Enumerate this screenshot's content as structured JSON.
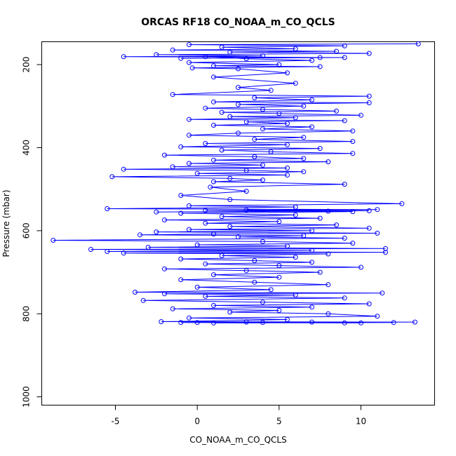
{
  "chart_data": {
    "type": "line",
    "title": "ORCAS RF18 CO_NOAA_m_CO_QCLS",
    "xlabel": "CO_NOAA_m_CO_QCLS",
    "ylabel": "Pressure (mbar)",
    "xlim": [
      -9.5,
      14.5
    ],
    "ylim": [
      1020,
      145
    ],
    "y_reversed": true,
    "x_ticks": [
      -5,
      0,
      5,
      10
    ],
    "x_tick_labels": [
      "-5",
      "0",
      "5",
      "10"
    ],
    "y_ticks": [
      200,
      400,
      600,
      800,
      1000
    ],
    "y_tick_labels": [
      "200",
      "400",
      "600",
      "800",
      "1000"
    ],
    "grid": false,
    "color": "#0000ff",
    "marker": "open-circle",
    "series": [
      {
        "values": [
          {
            "x": 13.5,
            "y": 150
          },
          {
            "x": -0.5,
            "y": 152
          },
          {
            "x": 9.0,
            "y": 155
          },
          {
            "x": 1.5,
            "y": 158
          },
          {
            "x": 6.0,
            "y": 162
          },
          {
            "x": -1.5,
            "y": 165
          },
          {
            "x": 8.5,
            "y": 168
          },
          {
            "x": 2.0,
            "y": 170
          },
          {
            "x": 10.5,
            "y": 173
          },
          {
            "x": -2.5,
            "y": 176
          },
          {
            "x": 4.0,
            "y": 179
          },
          {
            "x": -4.5,
            "y": 181
          },
          {
            "x": 9.0,
            "y": 183
          },
          {
            "x": -1.0,
            "y": 185
          },
          {
            "x": 7.5,
            "y": 183
          },
          {
            "x": 0.5,
            "y": 181
          },
          {
            "x": 3.0,
            "y": 186
          },
          {
            "x": 7.0,
            "y": 190
          },
          {
            "x": -0.5,
            "y": 195
          },
          {
            "x": 5.0,
            "y": 200
          },
          {
            "x": 1.0,
            "y": 203
          },
          {
            "x": 7.5,
            "y": 205
          },
          {
            "x": -0.3,
            "y": 208
          },
          {
            "x": 2.5,
            "y": 210
          },
          {
            "x": 5.5,
            "y": 220
          },
          {
            "x": 1.0,
            "y": 230
          },
          {
            "x": 6.0,
            "y": 245
          },
          {
            "x": 2.5,
            "y": 255
          },
          {
            "x": 4.5,
            "y": 262
          },
          {
            "x": -1.5,
            "y": 272
          },
          {
            "x": 10.5,
            "y": 276
          },
          {
            "x": 3.5,
            "y": 280
          },
          {
            "x": 7.0,
            "y": 285
          },
          {
            "x": 1.0,
            "y": 290
          },
          {
            "x": 10.5,
            "y": 292
          },
          {
            "x": 2.5,
            "y": 296
          },
          {
            "x": 6.5,
            "y": 300
          },
          {
            "x": 0.5,
            "y": 305
          },
          {
            "x": 4.0,
            "y": 308
          },
          {
            "x": 8.5,
            "y": 312
          },
          {
            "x": 1.5,
            "y": 315
          },
          {
            "x": 5.0,
            "y": 318
          },
          {
            "x": 10.0,
            "y": 322
          },
          {
            "x": 2.0,
            "y": 325
          },
          {
            "x": 6.0,
            "y": 328
          },
          {
            "x": -0.5,
            "y": 332
          },
          {
            "x": 9.0,
            "y": 335
          },
          {
            "x": 3.0,
            "y": 338
          },
          {
            "x": 5.5,
            "y": 342
          },
          {
            "x": 1.0,
            "y": 346
          },
          {
            "x": 7.0,
            "y": 350
          },
          {
            "x": 4.0,
            "y": 355
          },
          {
            "x": 9.5,
            "y": 360
          },
          {
            "x": 2.5,
            "y": 365
          },
          {
            "x": -0.5,
            "y": 370
          },
          {
            "x": 6.5,
            "y": 375
          },
          {
            "x": 3.5,
            "y": 380
          },
          {
            "x": 9.5,
            "y": 385
          },
          {
            "x": 0.5,
            "y": 390
          },
          {
            "x": 5.5,
            "y": 393
          },
          {
            "x": -1.0,
            "y": 398
          },
          {
            "x": 7.5,
            "y": 402
          },
          {
            "x": 1.5,
            "y": 406
          },
          {
            "x": 4.5,
            "y": 410
          },
          {
            "x": 9.5,
            "y": 414
          },
          {
            "x": -2.0,
            "y": 418
          },
          {
            "x": 3.5,
            "y": 422
          },
          {
            "x": 6.5,
            "y": 426
          },
          {
            "x": 1.0,
            "y": 430
          },
          {
            "x": 8.0,
            "y": 434
          },
          {
            "x": -0.5,
            "y": 438
          },
          {
            "x": 4.0,
            "y": 442
          },
          {
            "x": -1.5,
            "y": 446
          },
          {
            "x": 5.5,
            "y": 449
          },
          {
            "x": -4.5,
            "y": 452
          },
          {
            "x": 3.0,
            "y": 455
          },
          {
            "x": 6.5,
            "y": 458
          },
          {
            "x": 0.0,
            "y": 462
          },
          {
            "x": 5.5,
            "y": 466
          },
          {
            "x": -5.2,
            "y": 470
          },
          {
            "x": 2.0,
            "y": 474
          },
          {
            "x": 4.0,
            "y": 478
          },
          {
            "x": 1.0,
            "y": 482
          },
          {
            "x": 9.0,
            "y": 488
          },
          {
            "x": 0.8,
            "y": 495
          },
          {
            "x": 3.0,
            "y": 505
          },
          {
            "x": -1.0,
            "y": 515
          },
          {
            "x": 2.0,
            "y": 525
          },
          {
            "x": 12.5,
            "y": 535
          },
          {
            "x": -0.5,
            "y": 540
          },
          {
            "x": 6.0,
            "y": 543
          },
          {
            "x": -5.5,
            "y": 547
          },
          {
            "x": 11.0,
            "y": 549
          },
          {
            "x": 0.5,
            "y": 551
          },
          {
            "x": 8.0,
            "y": 553
          },
          {
            "x": -2.5,
            "y": 555
          },
          {
            "x": 10.5,
            "y": 552
          },
          {
            "x": 3.0,
            "y": 550
          },
          {
            "x": 9.5,
            "y": 554
          },
          {
            "x": -1.0,
            "y": 558
          },
          {
            "x": 6.0,
            "y": 562
          },
          {
            "x": 1.5,
            "y": 566
          },
          {
            "x": 7.5,
            "y": 570
          },
          {
            "x": -2.0,
            "y": 574
          },
          {
            "x": 5.0,
            "y": 578
          },
          {
            "x": 0.5,
            "y": 582
          },
          {
            "x": 8.5,
            "y": 586
          },
          {
            "x": 2.0,
            "y": 590
          },
          {
            "x": 10.5,
            "y": 594
          },
          {
            "x": -0.5,
            "y": 597
          },
          {
            "x": 7.0,
            "y": 600
          },
          {
            "x": -2.5,
            "y": 603
          },
          {
            "x": 11.0,
            "y": 606
          },
          {
            "x": 1.0,
            "y": 608
          },
          {
            "x": -3.5,
            "y": 610
          },
          {
            "x": 6.5,
            "y": 612
          },
          {
            "x": 2.5,
            "y": 615
          },
          {
            "x": 9.0,
            "y": 618
          },
          {
            "x": -8.8,
            "y": 623
          },
          {
            "x": 4.0,
            "y": 626
          },
          {
            "x": 9.5,
            "y": 630
          },
          {
            "x": 0.0,
            "y": 634
          },
          {
            "x": 5.5,
            "y": 637
          },
          {
            "x": -3.0,
            "y": 640
          },
          {
            "x": 11.5,
            "y": 643
          },
          {
            "x": -6.5,
            "y": 645
          },
          {
            "x": 7.0,
            "y": 647
          },
          {
            "x": -5.5,
            "y": 650
          },
          {
            "x": 11.5,
            "y": 652
          },
          {
            "x": -4.5,
            "y": 654
          },
          {
            "x": 8.0,
            "y": 656
          },
          {
            "x": 1.5,
            "y": 660
          },
          {
            "x": 6.0,
            "y": 664
          },
          {
            "x": -1.0,
            "y": 668
          },
          {
            "x": 3.5,
            "y": 672
          },
          {
            "x": 7.0,
            "y": 676
          },
          {
            "x": 0.5,
            "y": 680
          },
          {
            "x": 5.0,
            "y": 684
          },
          {
            "x": 10.0,
            "y": 688
          },
          {
            "x": -2.0,
            "y": 692
          },
          {
            "x": 3.0,
            "y": 696
          },
          {
            "x": 7.5,
            "y": 700
          },
          {
            "x": 1.0,
            "y": 706
          },
          {
            "x": 5.0,
            "y": 712
          },
          {
            "x": -1.0,
            "y": 718
          },
          {
            "x": 3.5,
            "y": 724
          },
          {
            "x": 8.0,
            "y": 730
          },
          {
            "x": 0.0,
            "y": 736
          },
          {
            "x": 4.5,
            "y": 742
          },
          {
            "x": -3.8,
            "y": 748
          },
          {
            "x": 11.3,
            "y": 750
          },
          {
            "x": -2.0,
            "y": 752
          },
          {
            "x": 6.0,
            "y": 755
          },
          {
            "x": 0.5,
            "y": 758
          },
          {
            "x": 9.0,
            "y": 762
          },
          {
            "x": -3.3,
            "y": 768
          },
          {
            "x": 4.0,
            "y": 772
          },
          {
            "x": 10.5,
            "y": 776
          },
          {
            "x": 1.0,
            "y": 780
          },
          {
            "x": 7.0,
            "y": 784
          },
          {
            "x": -1.5,
            "y": 788
          },
          {
            "x": 5.0,
            "y": 792
          },
          {
            "x": 2.0,
            "y": 796
          },
          {
            "x": 8.0,
            "y": 800
          },
          {
            "x": 11.0,
            "y": 806
          },
          {
            "x": -0.5,
            "y": 810
          },
          {
            "x": 5.5,
            "y": 814
          },
          {
            "x": -2.2,
            "y": 819
          },
          {
            "x": 13.3,
            "y": 820
          },
          {
            "x": 0.0,
            "y": 821
          },
          {
            "x": 9.0,
            "y": 822
          },
          {
            "x": 3.0,
            "y": 820
          },
          {
            "x": 12.0,
            "y": 821
          },
          {
            "x": 1.0,
            "y": 822
          },
          {
            "x": 7.0,
            "y": 820
          },
          {
            "x": -1.0,
            "y": 821
          },
          {
            "x": 10.0,
            "y": 822
          },
          {
            "x": 4.0,
            "y": 821
          }
        ]
      }
    ]
  }
}
